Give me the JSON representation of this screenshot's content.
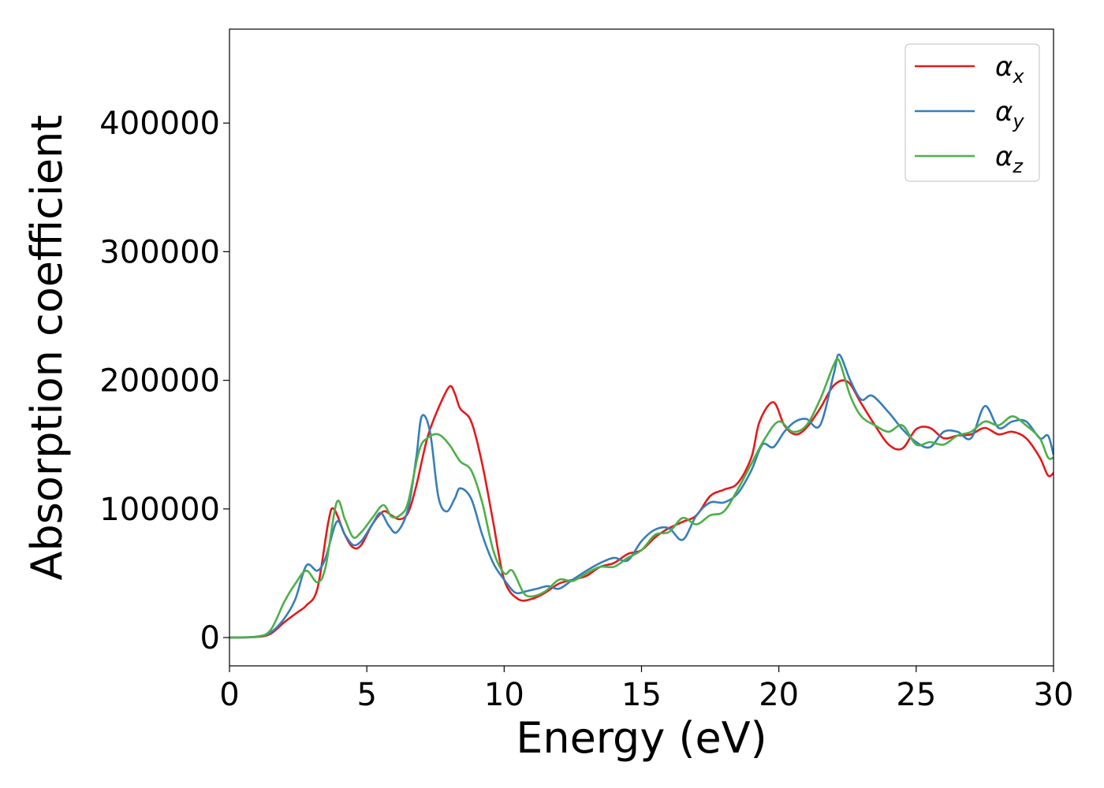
{
  "chart_data": {
    "type": "line",
    "xlabel": "Energy (eV)",
    "ylabel": "Absorption coefficient",
    "xlim": [
      0,
      30
    ],
    "ylim": [
      -22000,
      473000
    ],
    "x_ticks": [
      0,
      5,
      10,
      15,
      20,
      25,
      30
    ],
    "y_ticks": [
      0,
      100000,
      200000,
      300000,
      400000
    ],
    "grid": false,
    "legend_position": "top-right",
    "series": [
      {
        "name": "α_x",
        "symbol": "α",
        "subscript": "x",
        "color": "#e41a1c",
        "points": [
          [
            0,
            0
          ],
          [
            1,
            500
          ],
          [
            1.5,
            3000
          ],
          [
            2,
            12000
          ],
          [
            2.5,
            20000
          ],
          [
            2.8,
            25000
          ],
          [
            3.2,
            38000
          ],
          [
            3.6,
            90000
          ],
          [
            3.8,
            100000
          ],
          [
            4.2,
            80000
          ],
          [
            4.5,
            70000
          ],
          [
            4.8,
            72000
          ],
          [
            5.2,
            88000
          ],
          [
            5.6,
            98000
          ],
          [
            5.9,
            95000
          ],
          [
            6.2,
            92000
          ],
          [
            6.5,
            97000
          ],
          [
            6.8,
            118000
          ],
          [
            7.2,
            155000
          ],
          [
            7.6,
            178000
          ],
          [
            8.0,
            195000
          ],
          [
            8.2,
            190000
          ],
          [
            8.4,
            178000
          ],
          [
            8.8,
            168000
          ],
          [
            9.2,
            135000
          ],
          [
            9.6,
            90000
          ],
          [
            10.0,
            45000
          ],
          [
            10.5,
            30000
          ],
          [
            11.0,
            30000
          ],
          [
            11.5,
            35000
          ],
          [
            12.0,
            42000
          ],
          [
            12.5,
            45000
          ],
          [
            13.0,
            48000
          ],
          [
            13.5,
            55000
          ],
          [
            14.0,
            58000
          ],
          [
            14.5,
            65000
          ],
          [
            15.0,
            68000
          ],
          [
            15.5,
            78000
          ],
          [
            16.0,
            85000
          ],
          [
            16.5,
            90000
          ],
          [
            17.0,
            95000
          ],
          [
            17.5,
            110000
          ],
          [
            18.0,
            115000
          ],
          [
            18.5,
            120000
          ],
          [
            19.0,
            140000
          ],
          [
            19.3,
            168000
          ],
          [
            19.8,
            183000
          ],
          [
            20.2,
            165000
          ],
          [
            20.6,
            158000
          ],
          [
            21.0,
            163000
          ],
          [
            21.5,
            178000
          ],
          [
            22.0,
            196000
          ],
          [
            22.5,
            199000
          ],
          [
            23.0,
            182000
          ],
          [
            23.5,
            165000
          ],
          [
            24.0,
            150000
          ],
          [
            24.5,
            147000
          ],
          [
            25.0,
            162000
          ],
          [
            25.5,
            163000
          ],
          [
            26.0,
            155000
          ],
          [
            26.5,
            157000
          ],
          [
            27.0,
            158000
          ],
          [
            27.5,
            163000
          ],
          [
            28.0,
            158000
          ],
          [
            28.5,
            160000
          ],
          [
            29.0,
            155000
          ],
          [
            29.5,
            140000
          ],
          [
            29.8,
            126000
          ],
          [
            30.0,
            128000
          ]
        ]
      },
      {
        "name": "α_y",
        "symbol": "α",
        "subscript": "y",
        "color": "#377eb8",
        "points": [
          [
            0,
            0
          ],
          [
            1,
            700
          ],
          [
            1.5,
            4000
          ],
          [
            2,
            15000
          ],
          [
            2.4,
            30000
          ],
          [
            2.8,
            56000
          ],
          [
            3.2,
            52000
          ],
          [
            3.5,
            62000
          ],
          [
            3.9,
            90000
          ],
          [
            4.2,
            80000
          ],
          [
            4.5,
            72000
          ],
          [
            4.8,
            75000
          ],
          [
            5.2,
            88000
          ],
          [
            5.5,
            97000
          ],
          [
            5.8,
            87000
          ],
          [
            6.1,
            82000
          ],
          [
            6.5,
            100000
          ],
          [
            6.8,
            140000
          ],
          [
            7.0,
            172000
          ],
          [
            7.3,
            160000
          ],
          [
            7.6,
            110000
          ],
          [
            7.9,
            98000
          ],
          [
            8.2,
            108000
          ],
          [
            8.4,
            116000
          ],
          [
            8.8,
            108000
          ],
          [
            9.2,
            80000
          ],
          [
            9.6,
            58000
          ],
          [
            10.0,
            45000
          ],
          [
            10.4,
            35000
          ],
          [
            10.8,
            36000
          ],
          [
            11.2,
            38000
          ],
          [
            11.6,
            40000
          ],
          [
            12.0,
            38000
          ],
          [
            12.5,
            45000
          ],
          [
            13.0,
            52000
          ],
          [
            13.5,
            58000
          ],
          [
            14.0,
            62000
          ],
          [
            14.5,
            60000
          ],
          [
            15.0,
            75000
          ],
          [
            15.5,
            84000
          ],
          [
            16.0,
            85000
          ],
          [
            16.5,
            76000
          ],
          [
            17.0,
            95000
          ],
          [
            17.5,
            105000
          ],
          [
            18.0,
            105000
          ],
          [
            18.5,
            112000
          ],
          [
            19.0,
            130000
          ],
          [
            19.4,
            150000
          ],
          [
            19.8,
            148000
          ],
          [
            20.2,
            160000
          ],
          [
            20.6,
            168000
          ],
          [
            21.0,
            170000
          ],
          [
            21.5,
            165000
          ],
          [
            22.0,
            205000
          ],
          [
            22.2,
            220000
          ],
          [
            22.6,
            200000
          ],
          [
            23.0,
            185000
          ],
          [
            23.4,
            188000
          ],
          [
            24.0,
            175000
          ],
          [
            24.5,
            162000
          ],
          [
            25.0,
            152000
          ],
          [
            25.5,
            148000
          ],
          [
            26.0,
            160000
          ],
          [
            26.5,
            160000
          ],
          [
            27.0,
            155000
          ],
          [
            27.5,
            180000
          ],
          [
            28.0,
            163000
          ],
          [
            28.5,
            168000
          ],
          [
            29.0,
            168000
          ],
          [
            29.5,
            155000
          ],
          [
            29.8,
            157000
          ],
          [
            30.0,
            142000
          ]
        ]
      },
      {
        "name": "α_z",
        "symbol": "α",
        "subscript": "z",
        "color": "#4daf4a",
        "points": [
          [
            0,
            0
          ],
          [
            1,
            800
          ],
          [
            1.5,
            6000
          ],
          [
            2,
            28000
          ],
          [
            2.4,
            42000
          ],
          [
            2.8,
            52000
          ],
          [
            3.2,
            43000
          ],
          [
            3.5,
            55000
          ],
          [
            3.9,
            105000
          ],
          [
            4.2,
            92000
          ],
          [
            4.5,
            78000
          ],
          [
            4.8,
            82000
          ],
          [
            5.2,
            93000
          ],
          [
            5.6,
            103000
          ],
          [
            5.9,
            94000
          ],
          [
            6.2,
            95000
          ],
          [
            6.5,
            105000
          ],
          [
            6.9,
            145000
          ],
          [
            7.2,
            155000
          ],
          [
            7.6,
            158000
          ],
          [
            8.0,
            150000
          ],
          [
            8.4,
            137000
          ],
          [
            8.8,
            130000
          ],
          [
            9.2,
            105000
          ],
          [
            9.6,
            68000
          ],
          [
            10.0,
            50000
          ],
          [
            10.3,
            52000
          ],
          [
            10.7,
            35000
          ],
          [
            11.0,
            32000
          ],
          [
            11.5,
            36000
          ],
          [
            12.0,
            45000
          ],
          [
            12.5,
            44000
          ],
          [
            13.0,
            50000
          ],
          [
            13.5,
            55000
          ],
          [
            14.0,
            55000
          ],
          [
            14.5,
            62000
          ],
          [
            15.0,
            68000
          ],
          [
            15.5,
            80000
          ],
          [
            16.0,
            82000
          ],
          [
            16.5,
            93000
          ],
          [
            17.0,
            88000
          ],
          [
            17.5,
            95000
          ],
          [
            18.0,
            98000
          ],
          [
            18.5,
            115000
          ],
          [
            19.0,
            135000
          ],
          [
            19.5,
            155000
          ],
          [
            20.0,
            168000
          ],
          [
            20.5,
            160000
          ],
          [
            21.0,
            165000
          ],
          [
            21.5,
            185000
          ],
          [
            22.0,
            212000
          ],
          [
            22.2,
            215000
          ],
          [
            22.6,
            188000
          ],
          [
            23.0,
            172000
          ],
          [
            23.5,
            165000
          ],
          [
            24.0,
            160000
          ],
          [
            24.5,
            165000
          ],
          [
            25.0,
            150000
          ],
          [
            25.5,
            152000
          ],
          [
            26.0,
            150000
          ],
          [
            26.5,
            157000
          ],
          [
            27.0,
            160000
          ],
          [
            27.5,
            168000
          ],
          [
            28.0,
            165000
          ],
          [
            28.5,
            172000
          ],
          [
            29.0,
            165000
          ],
          [
            29.5,
            155000
          ],
          [
            29.8,
            140000
          ],
          [
            30.0,
            140000
          ]
        ]
      }
    ]
  }
}
